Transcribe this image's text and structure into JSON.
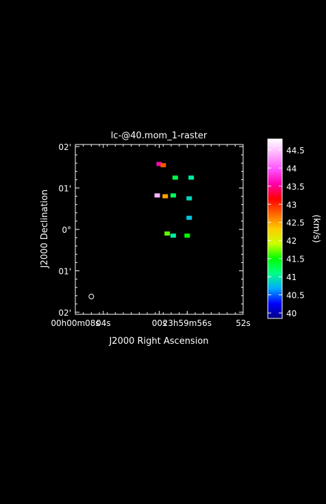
{
  "chart_data": {
    "type": "heatmap",
    "title": "lc-@40.mom_1-raster",
    "xlabel": "J2000 Right Ascension",
    "ylabel": "J2000 Declination",
    "colorbar_label": "(km/s)",
    "grid": false,
    "x_axis": {
      "units": "arcsec offset (east positive)",
      "range": [
        42,
        -42
      ],
      "ticks": [
        {
          "value": 42,
          "label": "00h00m08s"
        },
        {
          "value": 28,
          "label": "04s"
        },
        {
          "value": 0,
          "label": "00s"
        },
        {
          "value": -14,
          "label": "23h59m56s"
        },
        {
          "value": -42,
          "label": "52s"
        }
      ]
    },
    "y_axis": {
      "units": "arcmin offset",
      "range": [
        -2.05,
        2.05
      ],
      "ticks": [
        {
          "value": 2,
          "label": "02'"
        },
        {
          "value": 1,
          "label": "01'"
        },
        {
          "value": 0,
          "label": "0°"
        },
        {
          "value": -1,
          "label": "01'"
        },
        {
          "value": -2,
          "label": "02'"
        }
      ]
    },
    "colorbar": {
      "range": [
        39.85,
        44.8
      ],
      "ticks": [
        40,
        40.5,
        41,
        41.5,
        42,
        42.5,
        43,
        43.5,
        44,
        44.5
      ],
      "tick_labels": [
        "40",
        "40.5",
        "41",
        "41.5",
        "42",
        "42.5",
        "43",
        "43.5",
        "44",
        "44.5"
      ],
      "colormap": [
        "#000080",
        "#0000ff",
        "#00aaff",
        "#00ff88",
        "#00ff00",
        "#ccff00",
        "#ffcc00",
        "#ff6600",
        "#ff0000",
        "#ff00aa",
        "#ff55ff",
        "#ffb0ff",
        "#ffffff"
      ]
    },
    "blobs": [
      {
        "ra": 0,
        "dec": 1.58,
        "velocity": 43.6
      },
      {
        "ra": -2,
        "dec": 1.55,
        "velocity": 42.8
      },
      {
        "ra": 1,
        "dec": 0.82,
        "velocity": 44.4
      },
      {
        "ra": -3,
        "dec": 0.8,
        "velocity": 42.5
      },
      {
        "ra": -8,
        "dec": 1.25,
        "velocity": 41.3
      },
      {
        "ra": -16,
        "dec": 1.25,
        "velocity": 41.0
      },
      {
        "ra": -7,
        "dec": 0.82,
        "velocity": 41.2
      },
      {
        "ra": -15,
        "dec": 0.75,
        "velocity": 40.9
      },
      {
        "ra": -15,
        "dec": 0.28,
        "velocity": 40.8
      },
      {
        "ra": -4,
        "dec": -0.1,
        "velocity": 41.7
      },
      {
        "ra": -7,
        "dec": -0.15,
        "velocity": 41.0
      },
      {
        "ra": -14,
        "dec": -0.15,
        "velocity": 41.5
      }
    ],
    "beam": {
      "ra": 34,
      "dec": -1.62
    }
  }
}
